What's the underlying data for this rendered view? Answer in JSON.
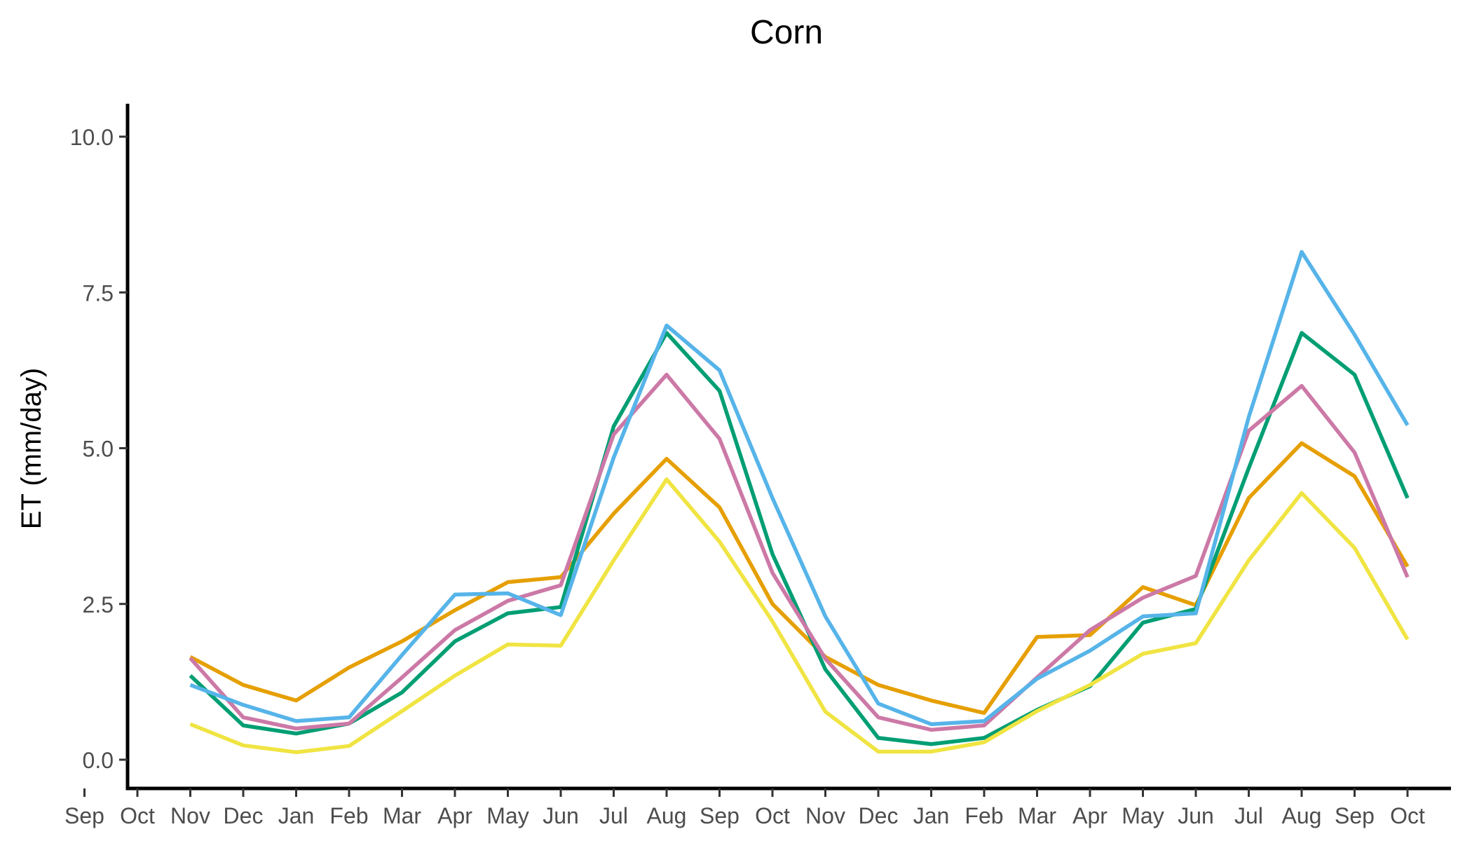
{
  "chart_data": {
    "type": "line",
    "title": "Corn",
    "xlabel": "",
    "ylabel": "ET (mm/day)",
    "ylim": [
      -0.3,
      10.5
    ],
    "yticks": [
      0.0,
      2.5,
      5.0,
      7.5,
      10.0
    ],
    "ytick_labels": [
      "0.0",
      "2.5",
      "5.0",
      "7.5",
      "10.0"
    ],
    "x_tick_labels": [
      "Sep",
      "Oct",
      "Nov",
      "Dec",
      "Jan",
      "Feb",
      "Mar",
      "Apr",
      "May",
      "Jun",
      "Jul",
      "Aug",
      "Sep",
      "Oct",
      "Nov",
      "Dec",
      "Jan",
      "Feb",
      "Mar",
      "Apr",
      "May",
      "Jun",
      "Jul",
      "Aug",
      "Sep",
      "Oct"
    ],
    "x": [
      "Oct",
      "Nov",
      "Dec",
      "Jan",
      "Feb",
      "Mar",
      "Apr",
      "May",
      "Jun",
      "Jul",
      "Aug",
      "Sep",
      "Oct",
      "Nov",
      "Dec",
      "Jan",
      "Feb",
      "Mar",
      "Apr",
      "May",
      "Jun",
      "Jul",
      "Aug",
      "Sep"
    ],
    "grid": false,
    "legend": "none",
    "series": [
      {
        "color": "#E69F00",
        "values": [
          1.65,
          1.2,
          0.95,
          1.48,
          1.9,
          2.4,
          2.85,
          2.93,
          3.95,
          4.83,
          4.05,
          2.5,
          1.65,
          1.2,
          0.95,
          0.75,
          1.97,
          2.0,
          2.77,
          2.48,
          4.2,
          5.08,
          4.55,
          3.1
        ]
      },
      {
        "color": "#009E73",
        "values": [
          1.35,
          0.55,
          0.42,
          0.58,
          1.08,
          1.9,
          2.35,
          2.45,
          5.35,
          6.85,
          5.92,
          3.3,
          1.45,
          0.35,
          0.25,
          0.35,
          0.8,
          1.18,
          2.2,
          2.42,
          4.68,
          6.85,
          6.18,
          4.2
        ]
      },
      {
        "color": "#CC79A7",
        "values": [
          1.63,
          0.68,
          0.5,
          0.58,
          1.32,
          2.08,
          2.55,
          2.8,
          5.22,
          6.18,
          5.15,
          3.0,
          1.62,
          0.68,
          0.48,
          0.55,
          1.32,
          2.08,
          2.6,
          2.95,
          5.28,
          6.0,
          4.93,
          2.93
        ]
      },
      {
        "color": "#56B4E9",
        "values": [
          1.2,
          0.88,
          0.62,
          0.68,
          1.68,
          2.65,
          2.67,
          2.32,
          4.85,
          6.97,
          6.25,
          4.2,
          2.3,
          0.9,
          0.57,
          0.62,
          1.3,
          1.75,
          2.3,
          2.35,
          5.5,
          8.15,
          6.82,
          5.37
        ]
      },
      {
        "color": "#F0E442",
        "values": [
          0.57,
          0.23,
          0.12,
          0.22,
          0.78,
          1.35,
          1.85,
          1.83,
          3.2,
          4.5,
          3.5,
          2.22,
          0.77,
          0.13,
          0.13,
          0.28,
          0.78,
          1.2,
          1.7,
          1.87,
          3.2,
          4.28,
          3.4,
          1.93
        ]
      }
    ]
  }
}
